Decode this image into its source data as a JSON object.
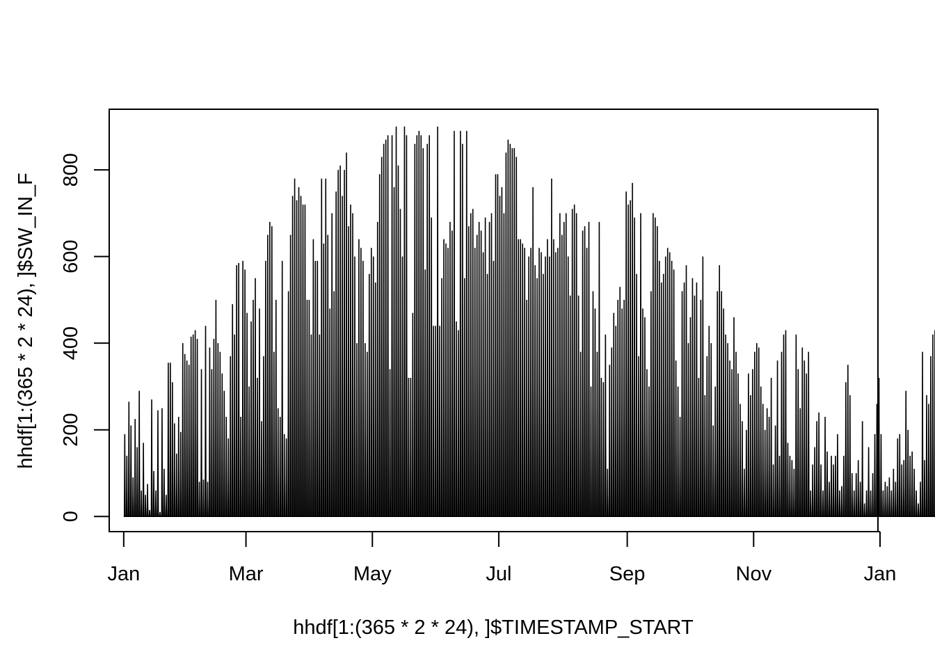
{
  "chart_data": {
    "type": "line",
    "title": "",
    "xlabel": "hhdf[1:(365 * 2 * 24), ]$TIMESTAMP_START",
    "ylabel": "hhdf[1:(365 * 2 * 24), ]$SW_IN_F",
    "xlim": [
      "2009-12-25",
      "2010-12-31"
    ],
    "ylim": [
      -35,
      940
    ],
    "x_ticks": [
      {
        "date": "2010-01-01",
        "label": "Jan"
      },
      {
        "date": "2010-03-01",
        "label": "Mar"
      },
      {
        "date": "2010-05-01",
        "label": "May"
      },
      {
        "date": "2010-07-01",
        "label": "Jul"
      },
      {
        "date": "2010-09-01",
        "label": "Sep"
      },
      {
        "date": "2010-11-01",
        "label": "Nov"
      },
      {
        "date": "2011-01-01",
        "label": "Jan"
      }
    ],
    "y_ticks": [
      0,
      200,
      400,
      600,
      800
    ],
    "grid": false,
    "legend": "none",
    "line_color": "#000000",
    "series": [
      {
        "x_start": "2010-01-01",
        "x_end": "2010-12-31",
        "values": [
          190,
          140,
          265,
          210,
          90,
          225,
          160,
          290,
          60,
          170,
          50,
          75,
          15,
          270,
          105,
          60,
          245,
          10,
          250,
          110,
          50,
          355,
          355,
          310,
          215,
          145,
          230,
          195,
          400,
          375,
          360,
          350,
          415,
          420,
          430,
          410,
          80,
          340,
          85,
          440,
          80,
          390,
          340,
          410,
          500,
          400,
          380,
          330,
          290,
          230,
          180,
          370,
          490,
          420,
          580,
          585,
          230,
          590,
          570,
          470,
          300,
          450,
          500,
          550,
          320,
          480,
          220,
          370,
          590,
          650,
          680,
          670,
          380,
          500,
          250,
          230,
          590,
          190,
          180,
          520,
          650,
          740,
          780,
          730,
          760,
          740,
          720,
          720,
          500,
          500,
          420,
          640,
          590,
          590,
          420,
          780,
          630,
          780,
          650,
          480,
          700,
          520,
          750,
          800,
          810,
          740,
          800,
          840,
          670,
          720,
          700,
          600,
          400,
          640,
          620,
          590,
          400,
          380,
          560,
          620,
          600,
          540,
          680,
          790,
          830,
          860,
          870,
          880,
          340,
          880,
          760,
          900,
          810,
          710,
          600,
          900,
          880,
          320,
          320,
          470,
          860,
          880,
          890,
          880,
          850,
          570,
          860,
          880,
          690,
          440,
          440,
          900,
          440,
          550,
          640,
          630,
          620,
          680,
          660,
          890,
          450,
          430,
          890,
          860,
          550,
          890,
          670,
          700,
          710,
          620,
          650,
          680,
          660,
          610,
          690,
          560,
          680,
          700,
          590,
          790,
          790,
          740,
          760,
          700,
          840,
          870,
          860,
          850,
          850,
          830,
          640,
          640,
          630,
          620,
          500,
          600,
          620,
          760,
          580,
          550,
          620,
          610,
          560,
          600,
          640,
          600,
          780,
          640,
          610,
          620,
          700,
          650,
          680,
          700,
          600,
          510,
          710,
          720,
          700,
          510,
          380,
          660,
          670,
          620,
          680,
          300,
          520,
          480,
          380,
          680,
          320,
          310,
          420,
          110,
          350,
          390,
          470,
          440,
          500,
          530,
          480,
          500,
          750,
          720,
          730,
          770,
          690,
          560,
          370,
          700,
          480,
          460,
          340,
          300,
          520,
          700,
          690,
          670,
          590,
          540,
          560,
          600,
          620,
          610,
          590,
          570,
          360,
          300,
          230,
          520,
          540,
          580,
          400,
          460,
          550,
          510,
          540,
          320,
          500,
          600,
          280,
          370,
          440,
          400,
          210,
          300,
          520,
          580,
          520,
          480,
          420,
          400,
          360,
          340,
          460,
          380,
          330,
          260,
          220,
          110,
          200,
          330,
          280,
          340,
          380,
          400,
          390,
          300,
          260,
          200,
          250,
          230,
          320,
          120,
          210,
          360,
          140,
          380,
          420,
          430,
          170,
          140,
          130,
          110,
          420,
          340,
          250,
          390,
          360,
          330,
          380,
          60,
          120,
          160,
          220,
          240,
          120,
          60,
          230,
          150,
          80,
          140,
          120,
          140,
          190,
          60,
          70,
          140,
          310,
          350,
          280,
          100,
          60,
          100,
          130,
          80,
          220,
          30,
          60,
          160,
          60,
          100,
          190,
          260,
          320,
          190,
          60,
          80,
          70,
          90,
          60,
          110,
          80,
          180,
          190,
          120,
          130,
          290,
          200,
          140,
          150,
          110,
          60,
          30,
          80,
          380,
          130,
          280,
          260,
          370,
          420,
          430
        ]
      }
    ]
  }
}
